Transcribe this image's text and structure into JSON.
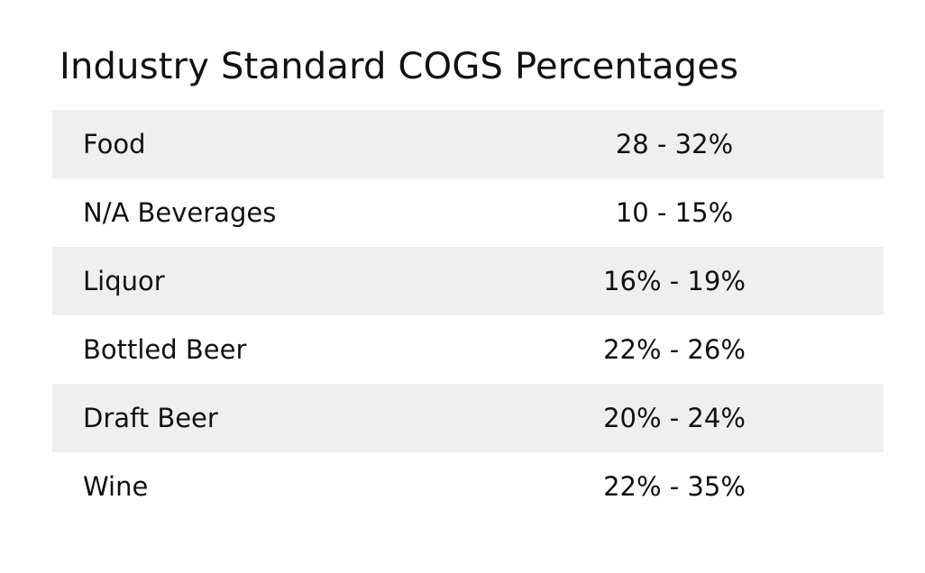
{
  "chart_data": {
    "type": "table",
    "title": "Industry Standard COGS Percentages",
    "rows": [
      {
        "category": "Food",
        "range": "28 - 32%",
        "low": 28,
        "high": 32
      },
      {
        "category": "N/A Beverages",
        "range": "10 - 15%",
        "low": 10,
        "high": 15
      },
      {
        "category": "Liquor",
        "range": "16% - 19%",
        "low": 16,
        "high": 19
      },
      {
        "category": "Bottled Beer",
        "range": "22% - 26%",
        "low": 22,
        "high": 26
      },
      {
        "category": "Draft Beer",
        "range": "20% - 24%",
        "low": 20,
        "high": 24
      },
      {
        "category": "Wine",
        "range": "22% - 35%",
        "low": 22,
        "high": 35
      }
    ]
  },
  "colors": {
    "shaded_row": "#efefef",
    "text": "#111111",
    "background": "#ffffff"
  }
}
